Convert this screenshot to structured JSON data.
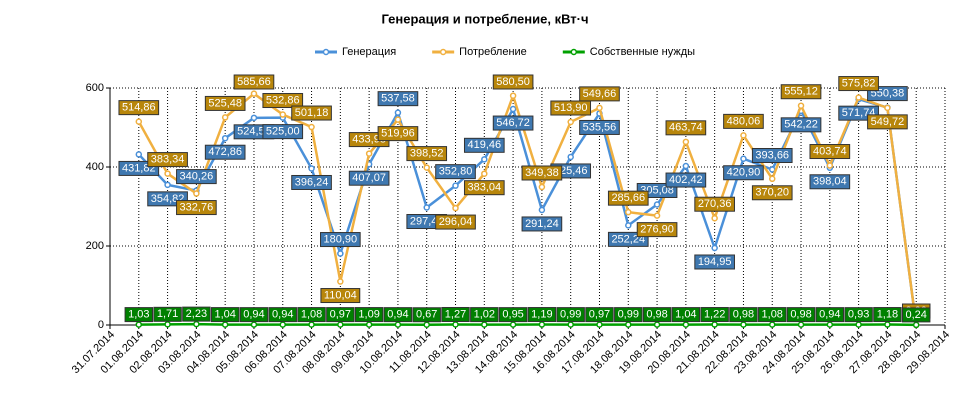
{
  "chart_data": {
    "type": "line",
    "title": "Генерация и потребление, кВт·ч",
    "categories": [
      "31.07.2014",
      "01.08.2014",
      "02.08.2014",
      "03.08.2014",
      "04.08.2014",
      "05.08.2014",
      "06.08.2014",
      "07.08.2014",
      "08.08.2014",
      "09.08.2014",
      "10.08.2014",
      "11.08.2014",
      "12.08.2014",
      "13.08.2014",
      "14.08.2014",
      "15.08.2014",
      "16.08.2014",
      "17.08.2014",
      "18.08.2014",
      "19.08.2014",
      "20.08.2014",
      "21.08.2014",
      "22.08.2014",
      "23.08.2014",
      "24.08.2014",
      "25.08.2014",
      "26.08.2014",
      "27.08.2014",
      "28.08.2014",
      "29.08.2014"
    ],
    "series": [
      {
        "name": "Генерация",
        "color": "#4a90d9",
        "label_color": "#3f78b0",
        "values": [
          null,
          431.82,
          354.82,
          340.26,
          472.86,
          524.52,
          525.0,
          396.24,
          180.9,
          407.07,
          537.58,
          297.44,
          352.8,
          419.46,
          546.72,
          291.24,
          425.46,
          535.56,
          252.24,
          305.08,
          402.42,
          194.95,
          420.9,
          393.66,
          542.22,
          398.04,
          571.74,
          550.38,
          0.0,
          null
        ],
        "value_labels": [
          null,
          "431,82",
          "354,82",
          "340,26",
          "472,86",
          "524,52",
          "525,00",
          "396,24",
          "180,90",
          "407,07",
          "537,58",
          "297,44",
          "352,80",
          "419,46",
          "546,72",
          "291,24",
          "425,46",
          "535,56",
          "252,24",
          "305,08",
          "402,42",
          "194,95",
          "420,90",
          "393,66",
          "542,22",
          "398,04",
          "571,74",
          "550,38",
          "0,00",
          null
        ]
      },
      {
        "name": "Потребление",
        "color": "#f0b040",
        "label_color": "#b8860b",
        "values": [
          null,
          514.86,
          383.34,
          332.76,
          525.48,
          585.66,
          532.86,
          501.18,
          110.04,
          433.98,
          519.96,
          398.52,
          296.04,
          383.04,
          580.5,
          349.38,
          513.9,
          549.66,
          285.66,
          276.9,
          463.74,
          270.36,
          480.06,
          370.2,
          555.12,
          403.74,
          575.82,
          549.72,
          0.0,
          null
        ],
        "value_labels": [
          null,
          "514,86",
          "383,34",
          "332,76",
          "525,48",
          "585,66",
          "532,86",
          "501,18",
          "110,04",
          "433,98",
          "519,96",
          "398,52",
          "296,04",
          "383,04",
          "580,50",
          "349,38",
          "513,90",
          "549,66",
          "285,66",
          "276,90",
          "463,74",
          "270,36",
          "480,06",
          "370,20",
          "555,12",
          "403,74",
          "575,82",
          "549,72",
          "0,00",
          null
        ]
      },
      {
        "name": "Собственные нужды",
        "color": "#00a000",
        "label_color": "#008000",
        "values": [
          null,
          1.03,
          1.71,
          2.23,
          1.04,
          0.94,
          0.94,
          1.08,
          0.97,
          1.09,
          0.94,
          0.67,
          1.27,
          1.02,
          0.95,
          1.19,
          0.99,
          0.97,
          0.99,
          0.98,
          1.04,
          1.22,
          0.98,
          1.08,
          0.98,
          0.94,
          0.93,
          1.18,
          0.24,
          null
        ],
        "value_labels": [
          null,
          "1,03",
          "1,71",
          "2,23",
          "1,04",
          "0,94",
          "0,94",
          "1,08",
          "0,97",
          "1,09",
          "0,94",
          "0,67",
          "1,27",
          "1,02",
          "0,95",
          "1,19",
          "0,99",
          "0,97",
          "0,99",
          "0,98",
          "1,04",
          "1,22",
          "0,98",
          "1,08",
          "0,98",
          "0,94",
          "0,93",
          "1,18",
          "0,24",
          null
        ]
      }
    ],
    "ylim": [
      0,
      600
    ],
    "yticks": [
      0,
      200,
      400,
      600
    ],
    "grid": true
  }
}
